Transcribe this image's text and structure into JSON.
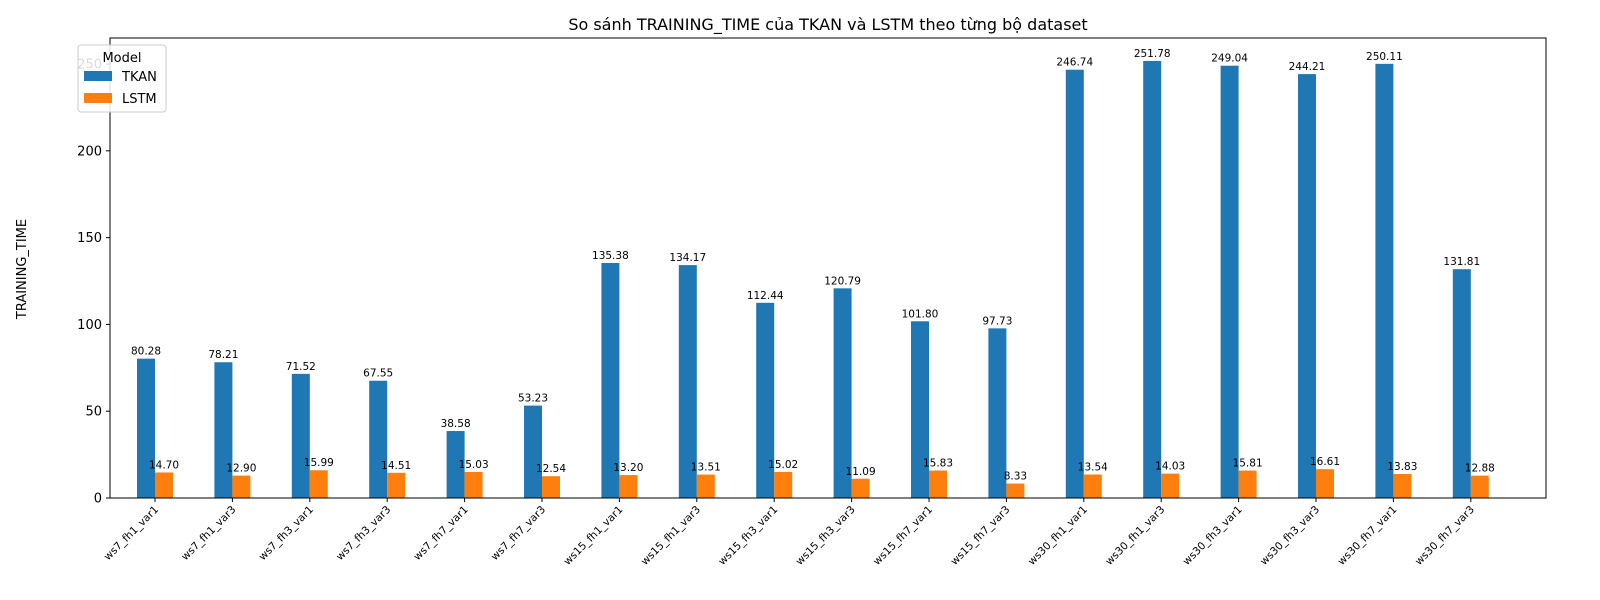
{
  "chart_data": {
    "type": "bar",
    "title": "So sánh TRAINING_TIME của TKAN và LSTM theo từng bộ dataset",
    "xlabel": "",
    "ylabel": "TRAINING_TIME",
    "ylim": [
      0,
      265
    ],
    "yticks": [
      0,
      50,
      100,
      150,
      200,
      250
    ],
    "grid": false,
    "legend": {
      "title": "Model",
      "position": "top-left"
    },
    "categories": [
      "ws7_fh1_var1",
      "ws7_fh1_var3",
      "ws7_fh3_var1",
      "ws7_fh3_var3",
      "ws7_fh7_var1",
      "ws7_fh7_var3",
      "ws15_fh1_var1",
      "ws15_fh1_var3",
      "ws15_fh3_var1",
      "ws15_fh3_var3",
      "ws15_fh7_var1",
      "ws15_fh7_var3",
      "ws30_fh1_var1",
      "ws30_fh1_var3",
      "ws30_fh3_var1",
      "ws30_fh3_var3",
      "ws30_fh7_var1",
      "ws30_fh7_var3"
    ],
    "series": [
      {
        "name": "TKAN",
        "color": "#1f77b4",
        "values": [
          80.28,
          78.21,
          71.52,
          67.55,
          38.58,
          53.23,
          135.38,
          134.17,
          112.44,
          120.79,
          101.8,
          97.73,
          246.74,
          251.78,
          249.04,
          244.21,
          250.11,
          131.81
        ],
        "labels": [
          "80.28",
          "78.21",
          "71.52",
          "67.55",
          "38.58",
          "53.23",
          "135.38",
          "134.17",
          "112.44",
          "120.79",
          "101.80",
          "97.73",
          "246.74",
          "251.78",
          "249.04",
          "244.21",
          "250.11",
          "131.81"
        ]
      },
      {
        "name": "LSTM",
        "color": "#ff7f0e",
        "values": [
          14.7,
          12.9,
          15.99,
          14.51,
          15.03,
          12.54,
          13.2,
          13.51,
          15.02,
          11.09,
          15.83,
          8.33,
          13.54,
          14.03,
          15.81,
          16.61,
          13.83,
          12.88
        ],
        "labels": [
          "14.70",
          "12.90",
          "15.99",
          "14.51",
          "15.03",
          "12.54",
          "13.20",
          "13.51",
          "15.02",
          "11.09",
          "15.83",
          "8.33",
          "13.54",
          "14.03",
          "15.81",
          "16.61",
          "13.83",
          "12.88"
        ]
      }
    ]
  }
}
